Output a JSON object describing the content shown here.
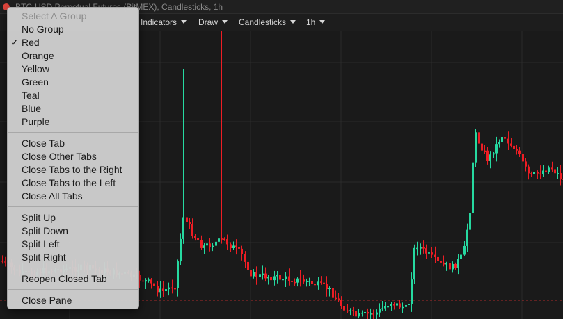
{
  "window": {
    "title": "BTC-USD Perpetual Futures (BitMEX), Candlesticks, 1h",
    "close_color": "#e2453c"
  },
  "toolbar": {
    "items": [
      {
        "label": "Indicators"
      },
      {
        "label": "Draw"
      },
      {
        "label": "Candlesticks"
      },
      {
        "label": "1h"
      }
    ]
  },
  "chart": {
    "background": "#1a1a1a",
    "grid_color": "#2b2b2b",
    "up_color": "#26d9a0",
    "down_color": "#ee1d24",
    "price_line_color": "#d03030"
  },
  "context_menu": {
    "header": "Select A Group",
    "groups": [
      {
        "label": "No Group",
        "checked": false
      },
      {
        "label": "Red",
        "checked": true
      },
      {
        "label": "Orange",
        "checked": false
      },
      {
        "label": "Yellow",
        "checked": false
      },
      {
        "label": "Green",
        "checked": false
      },
      {
        "label": "Teal",
        "checked": false
      },
      {
        "label": "Blue",
        "checked": false
      },
      {
        "label": "Purple",
        "checked": false
      }
    ],
    "check_mark": "✓",
    "tab_actions": [
      {
        "label": "Close Tab"
      },
      {
        "label": "Close Other Tabs"
      },
      {
        "label": "Close Tabs to the Right"
      },
      {
        "label": "Close Tabs to the Left"
      },
      {
        "label": "Close All Tabs"
      }
    ],
    "split_actions": [
      {
        "label": "Split Up"
      },
      {
        "label": "Split Down"
      },
      {
        "label": "Split Left"
      },
      {
        "label": "Split Right"
      }
    ],
    "reopen": "Reopen Closed Tab",
    "close_pane": "Close Pane"
  }
}
